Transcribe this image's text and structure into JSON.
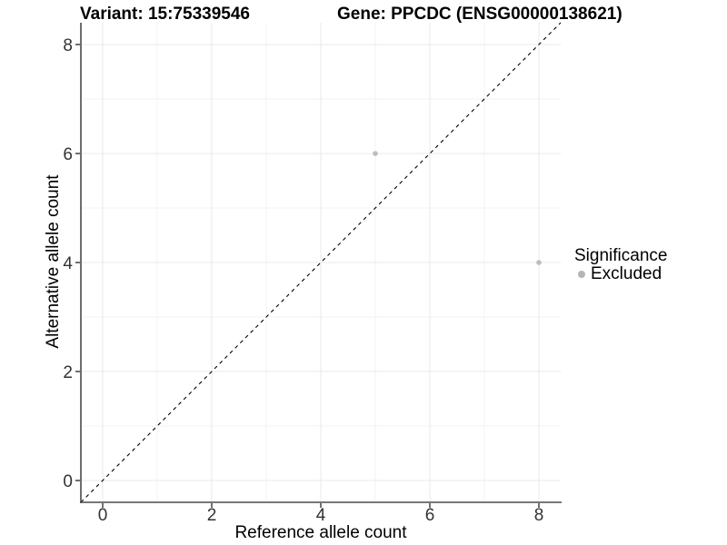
{
  "chart_data": {
    "type": "scatter",
    "title_left": "Variant: 15:75339546",
    "title_right": "Gene: PPCDC (ENSG00000138621)",
    "xlabel": "Reference allele count",
    "ylabel": "Alternative allele count",
    "xlim": [
      -0.4,
      8.4
    ],
    "ylim": [
      -0.4,
      8.4
    ],
    "x_ticks": [
      0,
      2,
      4,
      6,
      8
    ],
    "y_ticks": [
      0,
      2,
      4,
      6,
      8
    ],
    "x_minor_ticks": [
      1,
      3,
      5,
      7
    ],
    "y_minor_ticks": [
      1,
      3,
      5,
      7
    ],
    "grid": true,
    "identity_line": {
      "slope": 1,
      "intercept": 0,
      "style": "dashed",
      "color": "#000000"
    },
    "series": [
      {
        "name": "Excluded",
        "color": "#bdbdbd",
        "points": [
          {
            "x": 5,
            "y": 6
          },
          {
            "x": 8,
            "y": 4
          }
        ]
      }
    ],
    "legend": {
      "title": "Significance",
      "position": "right",
      "items": [
        {
          "label": "Excluded",
          "color": "#b5b5b5"
        }
      ]
    }
  },
  "colors": {
    "background": "#ffffff",
    "grid_major": "#e9e9e9",
    "grid_minor": "#f3f3f3",
    "axis_line": "#4a4a4a",
    "tick_mark": "#333333",
    "tick_text": "#333333",
    "point": "#bdbdbd"
  }
}
